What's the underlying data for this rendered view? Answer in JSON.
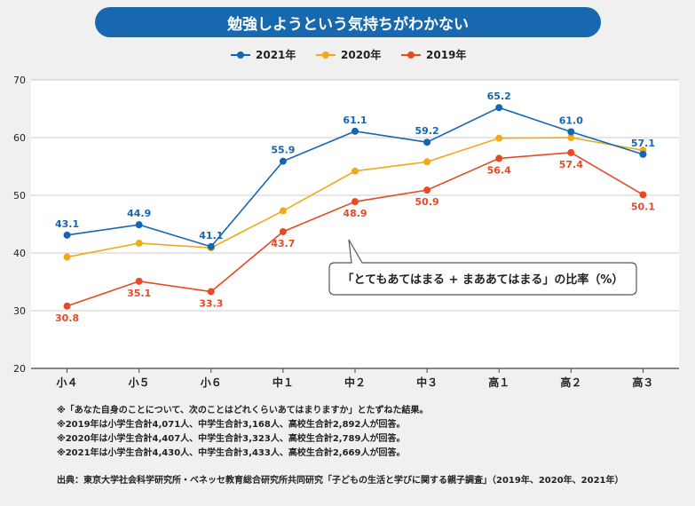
{
  "chart_data": {
    "type": "line",
    "title": "勉強しようという気持ちがわかない",
    "categories": [
      "小４",
      "小５",
      "小６",
      "中１",
      "中２",
      "中３",
      "高１",
      "高２",
      "高３"
    ],
    "ylim": [
      20,
      70
    ],
    "yticks": [
      "20",
      "30",
      "40",
      "50",
      "60",
      "70"
    ],
    "grid": true,
    "legend_position": "top-center",
    "series": [
      {
        "name": "2021年",
        "color": "#1566b0",
        "values": [
          43.1,
          44.9,
          41.1,
          55.9,
          61.1,
          59.2,
          65.2,
          61.0,
          57.1
        ],
        "labels": [
          "43.1",
          "44.9",
          "41.1",
          "55.9",
          "61.1",
          "59.2",
          "65.2",
          "61.0",
          "57.1"
        ]
      },
      {
        "name": "2020年",
        "color": "#eeaa1a",
        "values": [
          39.3,
          41.7,
          40.9,
          47.3,
          54.2,
          55.8,
          59.9,
          60.0,
          57.8
        ],
        "labels": []
      },
      {
        "name": "2019年",
        "color": "#e64a24",
        "values": [
          30.8,
          35.1,
          33.3,
          43.7,
          48.9,
          50.9,
          56.4,
          57.4,
          50.1
        ],
        "labels": [
          "30.8",
          "35.1",
          "33.3",
          "43.7",
          "48.9",
          "50.9",
          "56.4",
          "57.4",
          "50.1"
        ]
      }
    ],
    "annotation": "「とてもあてはまる + まああてはまる」の比率（%）"
  },
  "notes": [
    "※「あなた自身のことについて、次のことはどれくらいあてはまりますか」とたずねた結果。",
    "※2019年は小学生合計4,071人、中学生合計3,168人、高校生合計2,892人が回答。",
    "※2020年は小学生合計4,407人、中学生合計3,323人、高校生合計2,789人が回答。",
    "※2021年は小学生合計4,430人、中学生合計3,433人、高校生合計2,669人が回答。"
  ],
  "source": "出典：東京大学社会科学研究所・ベネッセ教育総合研究所共同研究「子どもの生活と学びに関する親子調査」（2019年、2020年、2021年）"
}
